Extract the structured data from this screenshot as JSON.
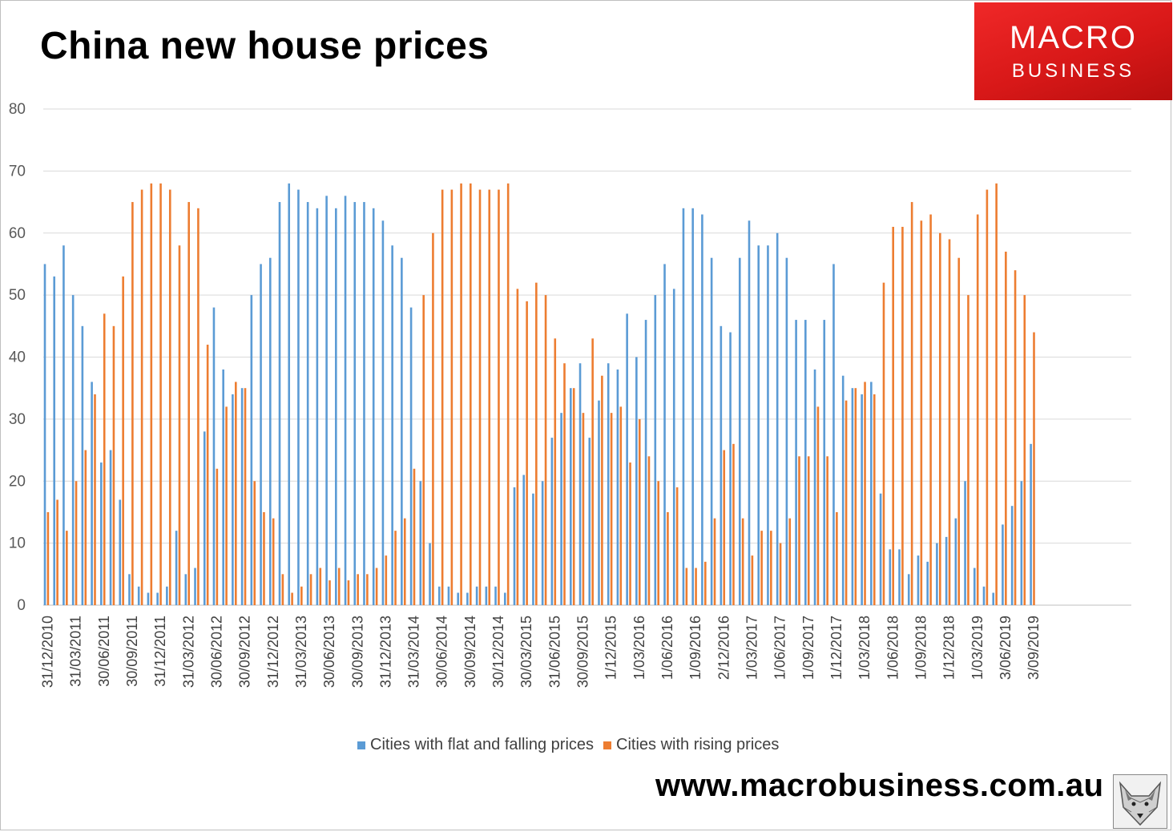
{
  "title": "China new house prices",
  "logo": {
    "line1": "MACRO",
    "line2": "BUSINESS"
  },
  "url": "www.macrobusiness.com.au",
  "colors": {
    "flat_falling": "#5b9bd5",
    "rising": "#ed7d31",
    "grid": "#d9d9d9",
    "logo_bg": "#e01f1f"
  },
  "icons": {
    "logo": "macrobusiness-logo",
    "mascot": "wolf-icon"
  },
  "chart_data": {
    "type": "bar",
    "title": "China new house prices",
    "xlabel": "",
    "ylabel": "",
    "ylim": [
      0,
      80
    ],
    "yticks": [
      0,
      10,
      20,
      30,
      40,
      50,
      60,
      70,
      80
    ],
    "grid": true,
    "legend_position": "bottom",
    "x_tick_labels": [
      "31/12/2010",
      "31/03/2011",
      "30/06/2011",
      "30/09/2011",
      "31/12/2011",
      "31/03/2012",
      "30/06/2012",
      "30/09/2012",
      "31/12/2012",
      "31/03/2013",
      "30/06/2013",
      "30/09/2013",
      "31/12/2013",
      "31/03/2014",
      "30/06/2014",
      "30/09/2014",
      "30/12/2014",
      "30/03/2015",
      "31/06/2015",
      "30/09/2015",
      "1/12/2015",
      "1/03/2016",
      "1/06/2016",
      "1/09/2016",
      "2/12/2016",
      "1/03/2017",
      "1/06/2017",
      "1/09/2017",
      "1/12/2017",
      "1/03/2018",
      "1/06/2018",
      "1/09/2018",
      "1/12/2018",
      "1/03/2019",
      "3/06/2019",
      "3/09/2019"
    ],
    "series": [
      {
        "name": "Cities with flat and falling prices",
        "values": [
          55,
          53,
          58,
          50,
          45,
          36,
          23,
          25,
          17,
          5,
          3,
          2,
          2,
          3,
          12,
          5,
          6,
          28,
          48,
          38,
          34,
          35,
          50,
          55,
          56,
          65,
          68,
          67,
          65,
          64,
          66,
          64,
          66,
          65,
          65,
          64,
          62,
          58,
          56,
          48,
          20,
          10,
          3,
          3,
          2,
          2,
          3,
          3,
          3,
          2,
          19,
          21,
          18,
          20,
          27,
          31,
          35,
          39,
          27,
          33,
          39,
          38,
          47,
          40,
          46,
          50,
          55,
          51,
          64,
          64,
          63,
          56,
          45,
          44,
          56,
          62,
          58,
          58,
          60,
          56,
          46,
          46,
          38,
          46,
          55,
          37,
          35,
          34,
          36,
          18,
          9,
          9,
          5,
          8,
          7,
          10,
          11,
          14,
          20,
          6,
          3,
          2,
          13,
          16,
          20,
          26
        ]
      },
      {
        "name": "Cities with rising prices",
        "values": [
          15,
          17,
          12,
          20,
          25,
          34,
          47,
          45,
          53,
          65,
          67,
          68,
          68,
          67,
          58,
          65,
          64,
          42,
          22,
          32,
          36,
          35,
          20,
          15,
          14,
          5,
          2,
          3,
          5,
          6,
          4,
          6,
          4,
          5,
          5,
          6,
          8,
          12,
          14,
          22,
          50,
          60,
          67,
          67,
          68,
          68,
          67,
          67,
          67,
          68,
          51,
          49,
          52,
          50,
          43,
          39,
          35,
          31,
          43,
          37,
          31,
          32,
          23,
          30,
          24,
          20,
          15,
          19,
          6,
          6,
          7,
          14,
          25,
          26,
          14,
          8,
          12,
          12,
          10,
          14,
          24,
          24,
          32,
          24,
          15,
          33,
          35,
          36,
          34,
          52,
          61,
          61,
          65,
          62,
          63,
          60,
          59,
          56,
          50,
          63,
          67,
          68,
          57,
          54,
          50,
          44
        ]
      }
    ]
  }
}
